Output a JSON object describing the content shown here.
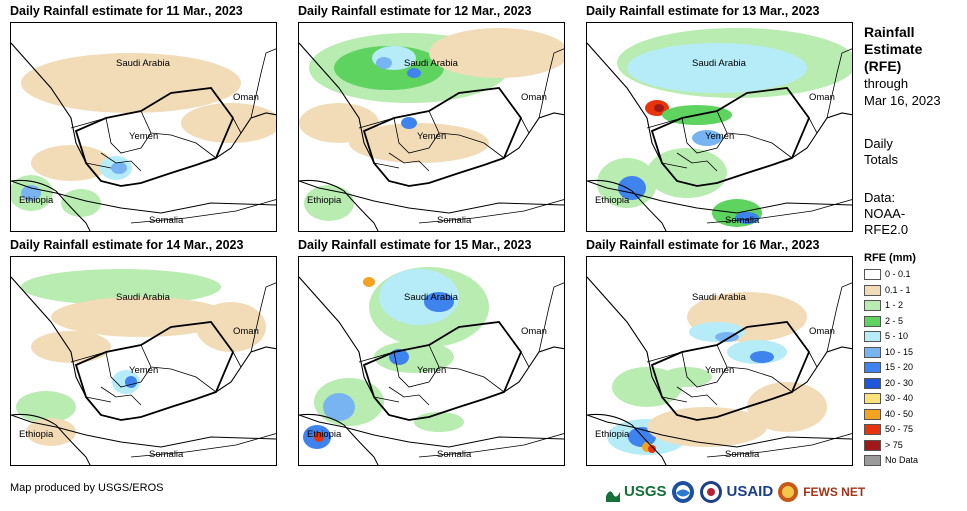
{
  "panels": [
    {
      "title": "Daily Rainfall estimate for 11 Mar., 2023",
      "variant": 0
    },
    {
      "title": "Daily Rainfall estimate for 12 Mar., 2023",
      "variant": 1
    },
    {
      "title": "Daily Rainfall estimate for 13 Mar., 2023",
      "variant": 2
    },
    {
      "title": "Daily Rainfall estimate for 14 Mar., 2023",
      "variant": 3
    },
    {
      "title": "Daily Rainfall estimate for 15 Mar., 2023",
      "variant": 4
    },
    {
      "title": "Daily Rainfall estimate for 16 Mar., 2023",
      "variant": 5
    }
  ],
  "map_labels": {
    "saudi": "Saudi Arabia",
    "oman": "Oman",
    "yemen": "Yemen",
    "ethiopia": "Ethiopia",
    "somalia": "Somalia"
  },
  "legend": {
    "heading": [
      "Rainfall",
      "Estimate",
      "(RFE)"
    ],
    "through": "through",
    "date": "Mar 16, 2023",
    "daily": [
      "Daily",
      "Totals"
    ],
    "data": [
      "Data:",
      "NOAA-",
      "RFE2.0"
    ],
    "title": "RFE (mm)",
    "items": [
      {
        "label": "0 - 0.1",
        "color": "#ffffff"
      },
      {
        "label": "0.1 - 1",
        "color": "#f2dcb8"
      },
      {
        "label": "1 - 2",
        "color": "#b8ecb0"
      },
      {
        "label": "2 - 5",
        "color": "#5fd35f"
      },
      {
        "label": "5 - 10",
        "color": "#b6ecf8"
      },
      {
        "label": "10 - 15",
        "color": "#78b4f2"
      },
      {
        "label": "15 - 20",
        "color": "#3f83ee"
      },
      {
        "label": "20 - 30",
        "color": "#1f57d8"
      },
      {
        "label": "30 - 40",
        "color": "#fbe27a"
      },
      {
        "label": "40 - 50",
        "color": "#f4a320"
      },
      {
        "label": "50 - 75",
        "color": "#e8340c"
      },
      {
        "label": "> 75",
        "color": "#a11818"
      },
      {
        "label": "No Data",
        "color": "#9a9a9a"
      }
    ]
  },
  "footer": "Map produced by USGS/EROS",
  "logos": [
    "USGS",
    "USAID",
    "FEWS NET"
  ]
}
